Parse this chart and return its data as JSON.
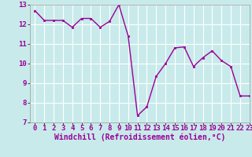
{
  "x": [
    0,
    1,
    2,
    3,
    4,
    5,
    6,
    7,
    8,
    9,
    10,
    11,
    12,
    13,
    14,
    15,
    16,
    17,
    18,
    19,
    20,
    21,
    22,
    23
  ],
  "y": [
    12.7,
    12.2,
    12.2,
    12.2,
    11.85,
    12.3,
    12.3,
    11.85,
    12.15,
    13.0,
    11.4,
    7.35,
    7.8,
    9.35,
    10.0,
    10.8,
    10.85,
    9.85,
    10.3,
    10.65,
    10.15,
    9.85,
    8.35,
    8.35
  ],
  "line_color": "#990099",
  "marker_color": "#990099",
  "bg_color": "#c8eaea",
  "grid_color": "#ffffff",
  "xlabel": "Windchill (Refroidissement éolien,°C)",
  "xlabel_color": "#990099",
  "ylim": [
    7,
    13
  ],
  "xlim": [
    -0.5,
    23
  ],
  "yticks": [
    7,
    8,
    9,
    10,
    11,
    12,
    13
  ],
  "xticks": [
    0,
    1,
    2,
    3,
    4,
    5,
    6,
    7,
    8,
    9,
    10,
    11,
    12,
    13,
    14,
    15,
    16,
    17,
    18,
    19,
    20,
    21,
    22,
    23
  ],
  "tick_label_fontsize": 6.5,
  "xlabel_fontsize": 7.0,
  "spine_color": "#999999"
}
